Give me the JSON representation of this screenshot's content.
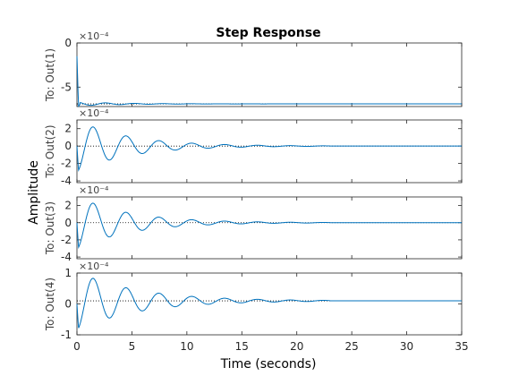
{
  "chart_data": {
    "type": "line",
    "title": "Step Response",
    "xlabel": "Time (seconds)",
    "ylabel": "Amplitude",
    "xlim": [
      0,
      35
    ],
    "xticks": [
      "0",
      "5",
      "10",
      "15",
      "20",
      "25",
      "30",
      "35"
    ],
    "line_color": "#0072BD",
    "final_line_style": "dotted",
    "settle_end_time": 23,
    "grid": false,
    "subplots": [
      {
        "ylabel": "To: Out(1)",
        "exponent": "×10⁻⁴",
        "ylim": [
          -7.2,
          0
        ],
        "yticks": [
          {
            "v": 0,
            "label": "0"
          },
          {
            "v": -5,
            "label": "-5"
          }
        ],
        "series": {
          "final": -6.9,
          "amplitude": 0.22,
          "decay": 0.25,
          "omega": 2.4,
          "spike": true
        }
      },
      {
        "ylabel": "To: Out(2)",
        "exponent": "×10⁻⁴",
        "ylim": [
          -4.2,
          3
        ],
        "yticks": [
          {
            "v": 2,
            "label": "2"
          },
          {
            "v": 0,
            "label": "0"
          },
          {
            "v": -2,
            "label": "-2"
          },
          {
            "v": -4,
            "label": "-4"
          }
        ],
        "series": {
          "final": 0,
          "amplitude": -3.0,
          "decay": 0.21,
          "omega": 2.1,
          "spike": false
        }
      },
      {
        "ylabel": "To: Out(3)",
        "exponent": "×10⁻⁴",
        "ylim": [
          -4.2,
          3
        ],
        "yticks": [
          {
            "v": 2,
            "label": "2"
          },
          {
            "v": 0,
            "label": "0"
          },
          {
            "v": -2,
            "label": "-2"
          },
          {
            "v": -4,
            "label": "-4"
          }
        ],
        "series": {
          "final": 0,
          "amplitude": -3.1,
          "decay": 0.21,
          "omega": 2.1,
          "spike": false
        }
      },
      {
        "ylabel": "To: Out(4)",
        "exponent": "×10⁻⁴",
        "ylim": [
          -1,
          1
        ],
        "yticks": [
          {
            "v": 1,
            "label": "1"
          },
          {
            "v": 0,
            "label": "0"
          },
          {
            "v": -1,
            "label": "-1"
          }
        ],
        "series": {
          "final": 0.1,
          "amplitude": -0.95,
          "decay": 0.18,
          "omega": 2.1,
          "spike": false
        }
      }
    ]
  }
}
